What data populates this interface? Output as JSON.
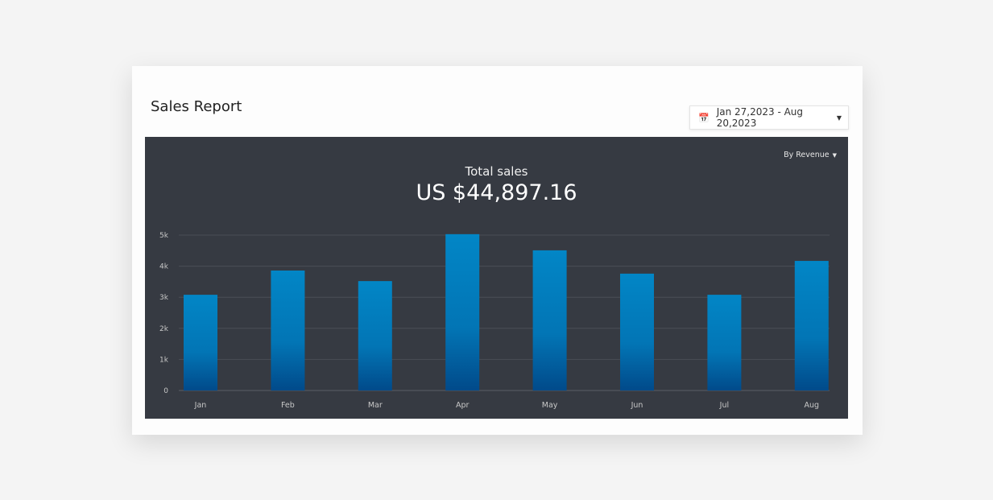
{
  "card": {
    "title": "Sales Report",
    "date_range": "Jan 27,2023 - Aug 20,2023",
    "calendar_icon": "calendar-icon",
    "dropdown_icon": "caret-down-icon"
  },
  "panel": {
    "metric_selector": "By Revenue",
    "total_label": "Total sales",
    "total_value": "US $44,897.16"
  },
  "colors": {
    "panel_bg": "#363a42",
    "bar_top": "#0286c6",
    "bar_bottom": "#014a8a"
  },
  "chart_data": {
    "type": "bar",
    "categories": [
      "Jan",
      "Feb",
      "Mar",
      "Apr",
      "May",
      "Jun",
      "Jul",
      "Aug"
    ],
    "values": [
      3080,
      3860,
      3520,
      5030,
      4510,
      3760,
      3080,
      4170
    ],
    "ylim": [
      0,
      5000
    ],
    "yticks": [
      0,
      1000,
      2000,
      3000,
      4000,
      5000
    ],
    "ytick_labels": [
      "0",
      "1k",
      "2k",
      "3k",
      "4k",
      "5k"
    ],
    "grid": true,
    "title": "",
    "xlabel": "",
    "ylabel": ""
  }
}
